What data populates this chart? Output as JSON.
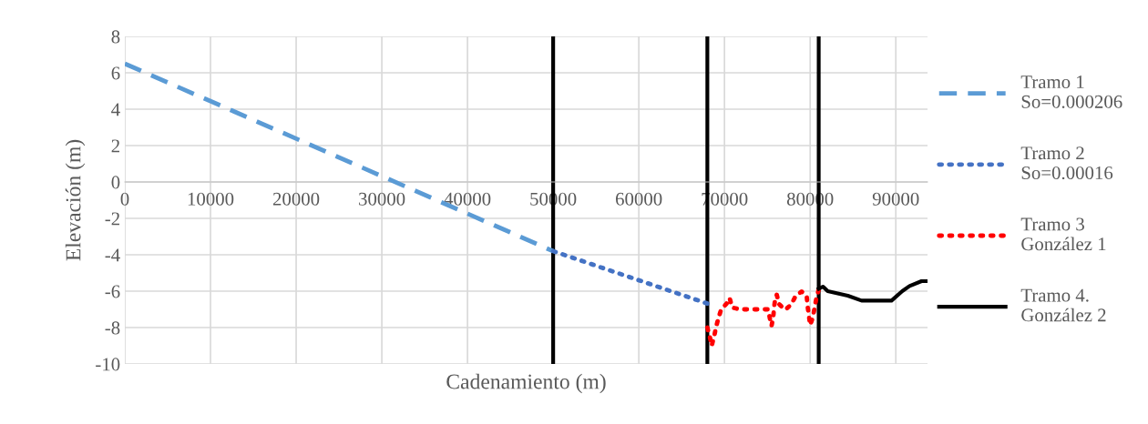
{
  "chart_data": {
    "type": "line",
    "xlabel": "Cadenamiento (m)",
    "ylabel": "Elevación (m)",
    "xlim": [
      0,
      93700
    ],
    "ylim": [
      -10,
      8
    ],
    "xticks": [
      0,
      10000,
      20000,
      30000,
      40000,
      50000,
      60000,
      70000,
      80000,
      90000
    ],
    "yticks": [
      -10,
      -8,
      -6,
      -4,
      -2,
      0,
      2,
      4,
      6,
      8
    ],
    "grid": true,
    "legend": "right",
    "marker": "none",
    "series": [
      {
        "name": "Tramo 1\nSo=0.000206",
        "color": "#5b9bd5",
        "line_style": "dashed",
        "x": [
          0,
          50000
        ],
        "values": [
          6.5,
          -3.8
        ]
      },
      {
        "name": "Tramo 2\nSo=0.00016",
        "color": "#4472c4",
        "line_style": "dotted",
        "x": [
          50000,
          68000
        ],
        "values": [
          -3.8,
          -6.68
        ]
      },
      {
        "name": "Tramo 3\nGonzález 1",
        "color": "#ff0000",
        "line_style": "dotted",
        "x": [
          68000,
          68300,
          68500,
          68800,
          69000,
          69300,
          69600,
          70250,
          70600,
          70900,
          71800,
          73000,
          74100,
          75100,
          75300,
          75500,
          75700,
          75800,
          75950,
          76100,
          76400,
          77100,
          77800,
          78300,
          79000,
          79600,
          79700,
          79850,
          80000,
          80300,
          80500,
          80700,
          81000
        ],
        "values": [
          -8.0,
          -8.53,
          -9.0,
          -8.48,
          -8.0,
          -7.47,
          -7.02,
          -6.68,
          -6.38,
          -6.9,
          -7.0,
          -7.0,
          -7.0,
          -7.0,
          -7.5,
          -7.9,
          -7.38,
          -6.87,
          -6.3,
          -6.2,
          -6.73,
          -7.02,
          -6.73,
          -6.27,
          -6.02,
          -6.27,
          -6.82,
          -7.33,
          -7.87,
          -7.47,
          -6.97,
          -6.45,
          -5.92
        ]
      },
      {
        "name": "Tramo 4.\nGonzález 2",
        "color": "#000000",
        "line_style": "solid",
        "x": [
          81000,
          81500,
          82050,
          84400,
          86000,
          89500,
          90750,
          91600,
          93000,
          93550
        ],
        "values": [
          -5.87,
          -5.75,
          -6.0,
          -6.25,
          -6.52,
          -6.52,
          -6.0,
          -5.72,
          -5.45,
          -5.45
        ]
      }
    ],
    "ref_lines": [
      {
        "axis": "x",
        "value": 50000,
        "color": "#000000"
      },
      {
        "axis": "x",
        "value": 68000,
        "color": "#000000"
      },
      {
        "axis": "x",
        "value": 81000,
        "color": "#000000"
      }
    ]
  }
}
